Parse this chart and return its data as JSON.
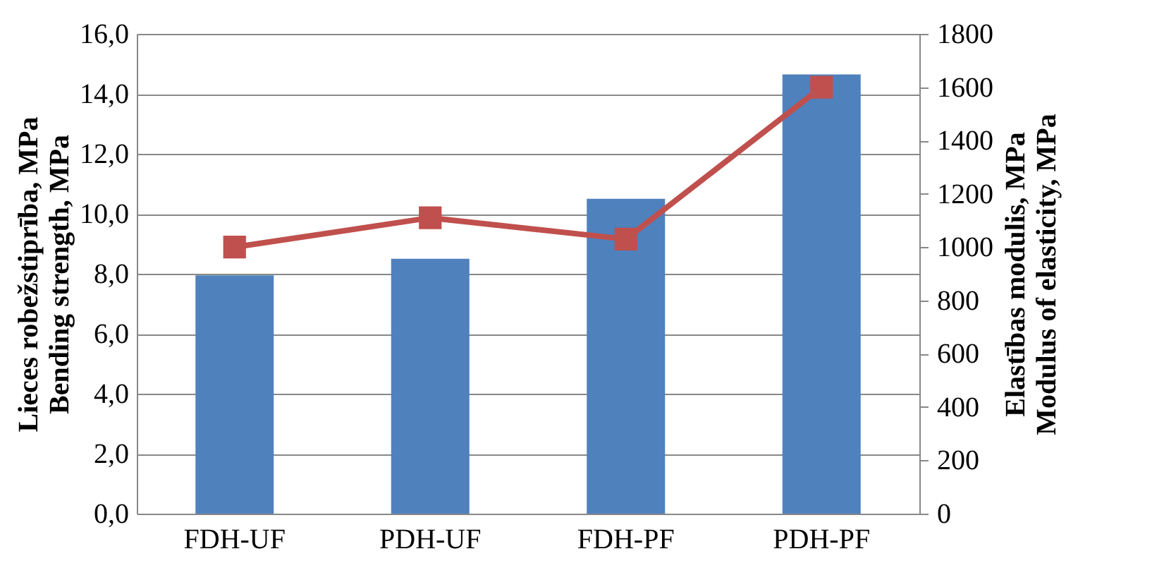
{
  "chart_data": {
    "type": "bar",
    "categories": [
      "FDH-UF",
      "PDH-UF",
      "FDH-PF",
      "PDH-PF"
    ],
    "ylabel": "Lieces robežstiprība, MPa\nBending strength, MPa",
    "y2label": "Elastības modulis, MPa\nModulus of elasticity, MPa",
    "series": [
      {
        "color": "#4f81bd",
        "values": [
          7.95,
          8.5,
          10.5,
          14.65
        ]
      },
      {
        "type": "line",
        "axis": "y2",
        "color": "#c0504d",
        "marker": "square",
        "values": [
          1000,
          1110,
          1030,
          1600
        ]
      }
    ],
    "ylim": [
      0,
      16
    ],
    "yticks": [
      {
        "value": 0,
        "label": "0,0"
      },
      {
        "value": 2,
        "label": "2,0"
      },
      {
        "value": 4,
        "label": "4,0"
      },
      {
        "value": 6,
        "label": "6,0"
      },
      {
        "value": 8,
        "label": "8,0"
      },
      {
        "value": 10,
        "label": "10,0"
      },
      {
        "value": 12,
        "label": "12,0"
      },
      {
        "value": 14,
        "label": "14,0"
      },
      {
        "value": 16,
        "label": "16,0"
      }
    ],
    "y2lim": [
      0,
      1800
    ],
    "y2ticks": [
      0,
      200,
      400,
      600,
      800,
      1000,
      1200,
      1400,
      1600,
      1800
    ],
    "grid": "y"
  }
}
